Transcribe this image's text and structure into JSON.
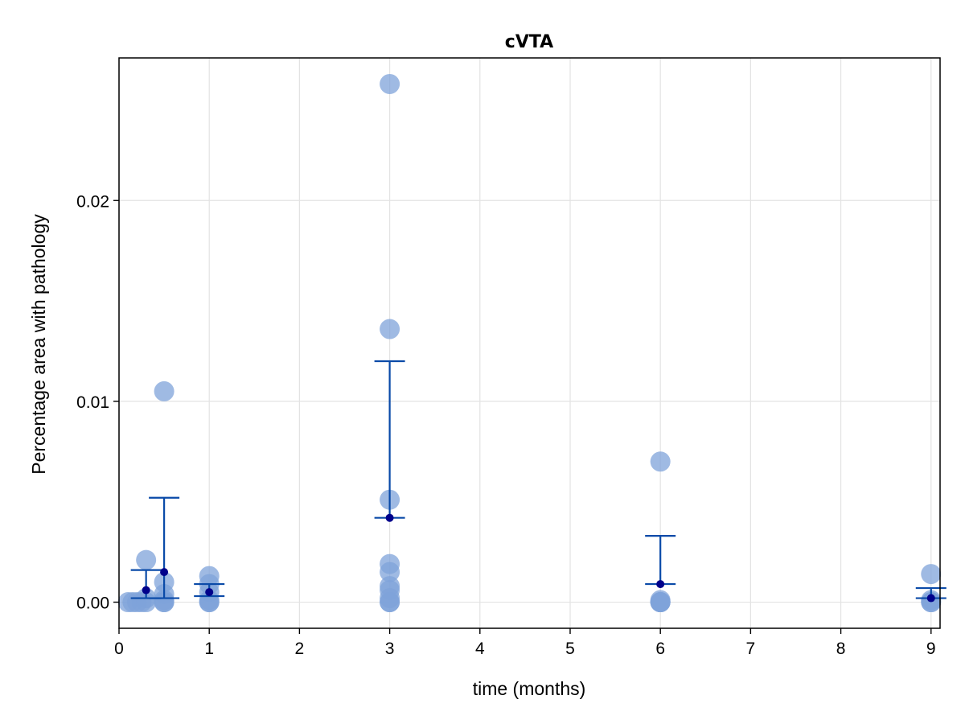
{
  "chart_data": {
    "type": "scatter",
    "title": "cVTA",
    "xlabel": "time (months)",
    "ylabel": "Percentage area with pathology",
    "xlim": [
      0,
      9.1
    ],
    "ylim": [
      -0.0013,
      0.0271
    ],
    "x_ticks": [
      0,
      1,
      2,
      3,
      4,
      5,
      6,
      7,
      8,
      9
    ],
    "y_ticks": [
      0.0,
      0.01,
      0.02
    ],
    "y_tick_labels": [
      "0.00",
      "0.01",
      "0.02"
    ],
    "grid": true,
    "colors": {
      "points": "#7fa3d9",
      "mean": "#00008b",
      "errorbar": "#0a4aa8",
      "grid": "#e3e3e3",
      "frame": "#000000"
    },
    "points": [
      {
        "x": 0.1,
        "y": 0.0
      },
      {
        "x": 0.15,
        "y": 0.0
      },
      {
        "x": 0.2,
        "y": 0.0
      },
      {
        "x": 0.25,
        "y": 0.0
      },
      {
        "x": 0.3,
        "y": 0.0021
      },
      {
        "x": 0.3,
        "y": 0.0
      },
      {
        "x": 0.3,
        "y": 0.0002
      },
      {
        "x": 0.5,
        "y": 0.0105
      },
      {
        "x": 0.5,
        "y": 0.001
      },
      {
        "x": 0.5,
        "y": 0.0004
      },
      {
        "x": 0.5,
        "y": 0.0001
      },
      {
        "x": 0.5,
        "y": 0.0
      },
      {
        "x": 0.5,
        "y": 0.0
      },
      {
        "x": 1.0,
        "y": 0.0013
      },
      {
        "x": 1.0,
        "y": 0.0009
      },
      {
        "x": 1.0,
        "y": 0.0005
      },
      {
        "x": 1.0,
        "y": 0.0001
      },
      {
        "x": 1.0,
        "y": 0.0
      },
      {
        "x": 1.0,
        "y": 0.0
      },
      {
        "x": 3.0,
        "y": 0.0258
      },
      {
        "x": 3.0,
        "y": 0.0136
      },
      {
        "x": 3.0,
        "y": 0.0051
      },
      {
        "x": 3.0,
        "y": 0.0019
      },
      {
        "x": 3.0,
        "y": 0.0015
      },
      {
        "x": 3.0,
        "y": 0.0008
      },
      {
        "x": 3.0,
        "y": 0.0006
      },
      {
        "x": 3.0,
        "y": 0.0002
      },
      {
        "x": 3.0,
        "y": 0.0
      },
      {
        "x": 3.0,
        "y": 0.0
      },
      {
        "x": 6.0,
        "y": 0.007
      },
      {
        "x": 6.0,
        "y": 0.0001
      },
      {
        "x": 6.0,
        "y": 0.0
      },
      {
        "x": 6.0,
        "y": 0.0
      },
      {
        "x": 6.0,
        "y": 0.0
      },
      {
        "x": 6.0,
        "y": 0.0
      },
      {
        "x": 9.0,
        "y": 0.0014
      },
      {
        "x": 9.0,
        "y": 0.0001
      },
      {
        "x": 9.0,
        "y": 0.0
      },
      {
        "x": 9.0,
        "y": 0.0
      }
    ],
    "summary": [
      {
        "x": 0.3,
        "mean": 0.0006,
        "lower": 0.0002,
        "upper": 0.0016
      },
      {
        "x": 0.5,
        "mean": 0.0015,
        "lower": 0.0002,
        "upper": 0.0052
      },
      {
        "x": 1.0,
        "mean": 0.0005,
        "lower": 0.0003,
        "upper": 0.0009
      },
      {
        "x": 3.0,
        "mean": 0.0042,
        "lower": 0.0042,
        "upper": 0.012
      },
      {
        "x": 6.0,
        "mean": 0.0009,
        "lower": 0.0009,
        "upper": 0.0033
      },
      {
        "x": 9.0,
        "mean": 0.0002,
        "lower": 0.0002,
        "upper": 0.0007
      }
    ]
  }
}
